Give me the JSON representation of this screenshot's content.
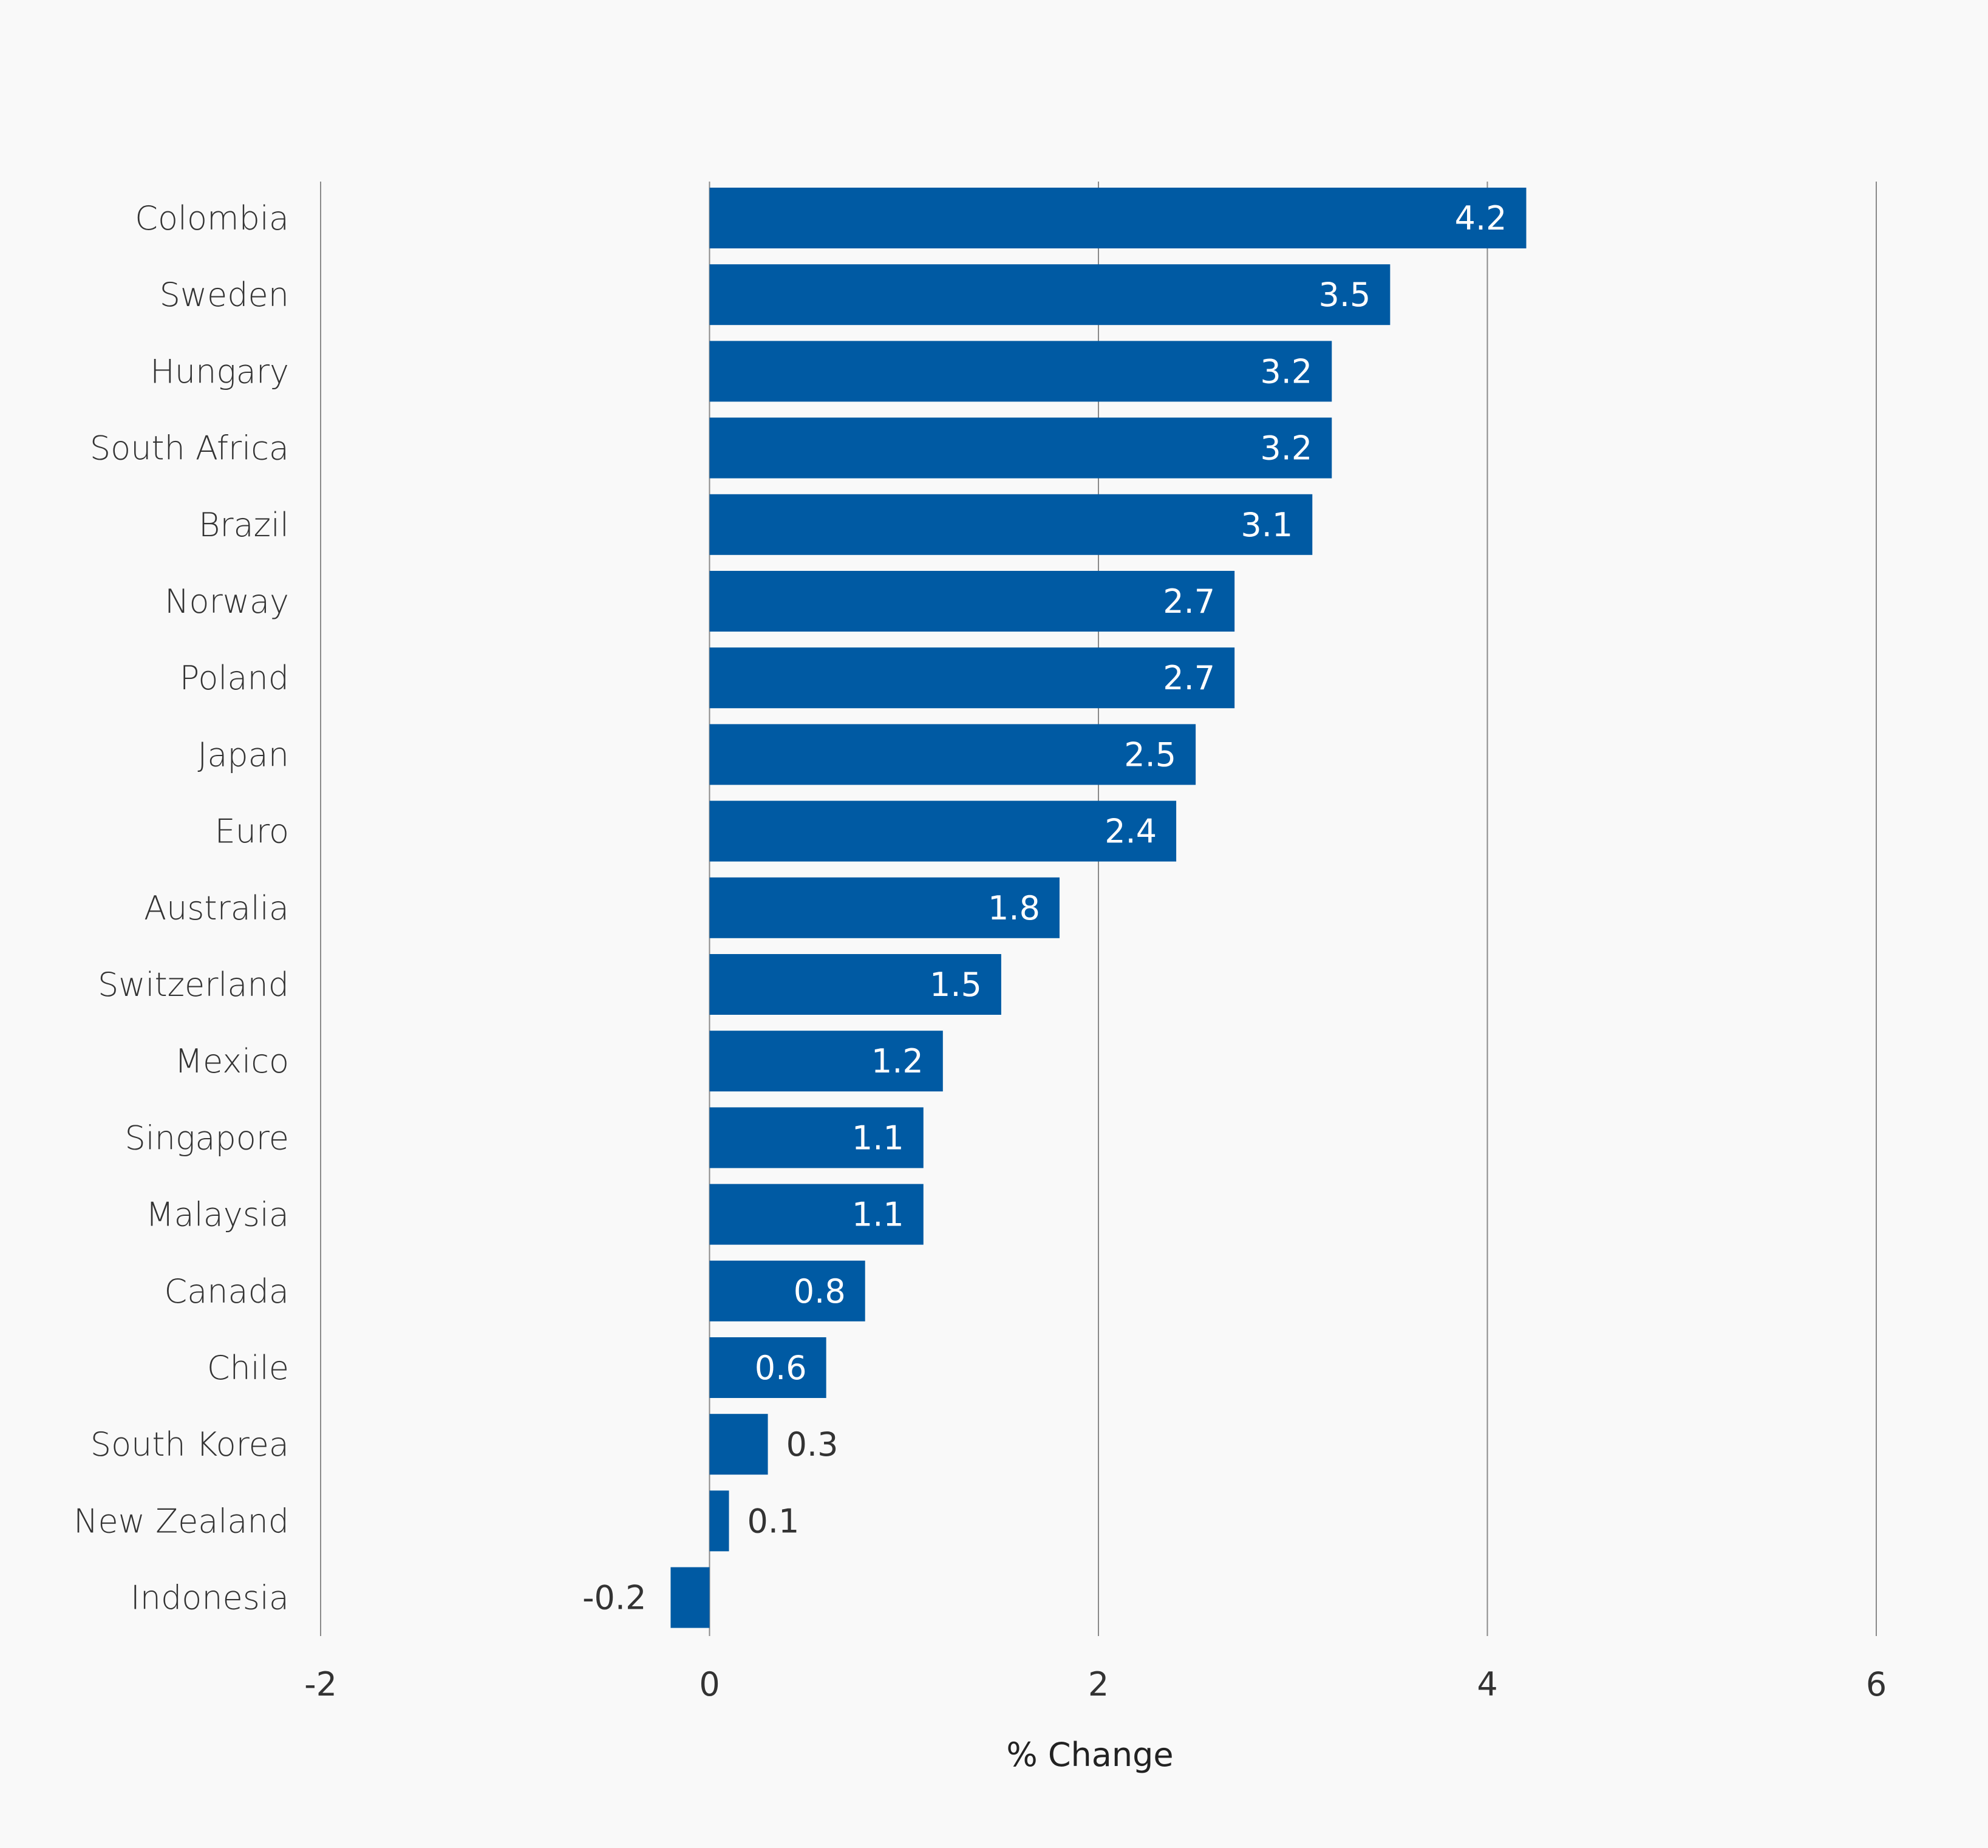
{
  "chart_data": {
    "type": "bar",
    "orientation": "horizontal",
    "categories": [
      "Colombia",
      "Sweden",
      "Hungary",
      "South Africa",
      "Brazil",
      "Norway",
      "Poland",
      "Japan",
      "Euro",
      "Australia",
      "Switzerland",
      "Mexico",
      "Singapore",
      "Malaysia",
      "Canada",
      "Chile",
      "South Korea",
      "New Zealand",
      "Indonesia"
    ],
    "values": [
      4.2,
      3.5,
      3.2,
      3.2,
      3.1,
      2.7,
      2.7,
      2.5,
      2.4,
      1.8,
      1.5,
      1.2,
      1.1,
      1.1,
      0.8,
      0.6,
      0.3,
      0.1,
      -0.2
    ],
    "data_labels": [
      "4.2",
      "3.5",
      "3.2",
      "3.2",
      "3.1",
      "2.7",
      "2.7",
      "2.5",
      "2.4",
      "1.8",
      "1.5",
      "1.2",
      "1.1",
      "1.1",
      "0.8",
      "0.6",
      "0.3",
      "0.1",
      "-0.2"
    ],
    "xlabel": "% Change",
    "ylabel": "",
    "xlim": [
      -2,
      6
    ],
    "xticks": [
      "-2",
      "0",
      "2",
      "4",
      "6"
    ],
    "grid": "vertical",
    "bar_color": "#005AA3",
    "label_color_inside": "#ffffff",
    "label_color_outside": "#333333"
  }
}
